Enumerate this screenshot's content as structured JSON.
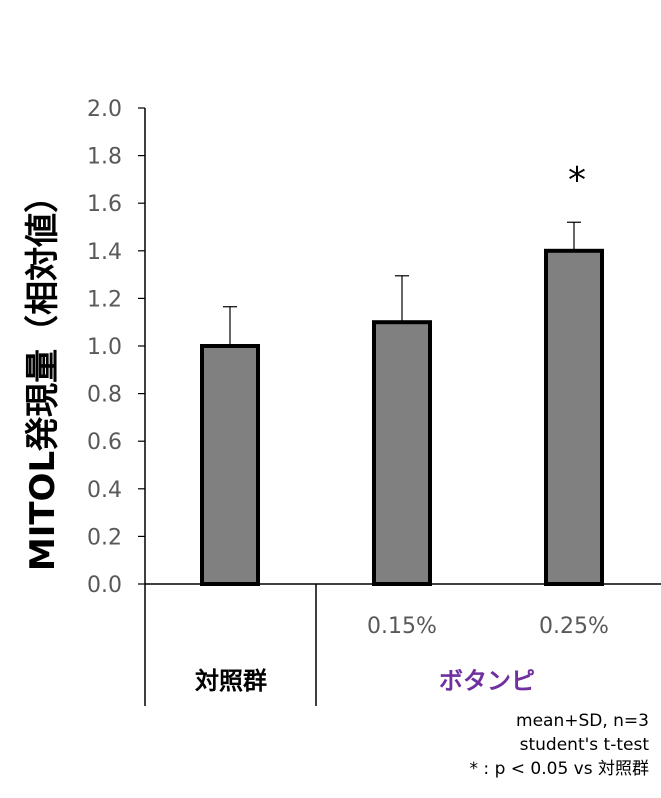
{
  "chart_data": {
    "type": "bar",
    "title": "",
    "ylabel": "MITOL発現量（相対値）",
    "xlabel": "",
    "ylim": [
      0,
      2.0
    ],
    "yticks": [
      "0.0",
      "0.2",
      "0.4",
      "0.6",
      "0.8",
      "1.0",
      "1.2",
      "1.4",
      "1.6",
      "1.8",
      "2.0"
    ],
    "categories": [
      "",
      "0.15%",
      "0.25%"
    ],
    "values": [
      1.0,
      1.1,
      1.4
    ],
    "error_plus": [
      0.165,
      0.195,
      0.12
    ],
    "significance": [
      "",
      "",
      "*"
    ],
    "groups": [
      {
        "label": "対照群",
        "color": "#000000"
      },
      {
        "label": "ボタンピ",
        "color": "#7030a0"
      }
    ],
    "bar_color": "#808080",
    "notes": [
      "mean+SD, n=3",
      "student's  t-test",
      "* : p  <  0.05 vs 対照群"
    ]
  }
}
